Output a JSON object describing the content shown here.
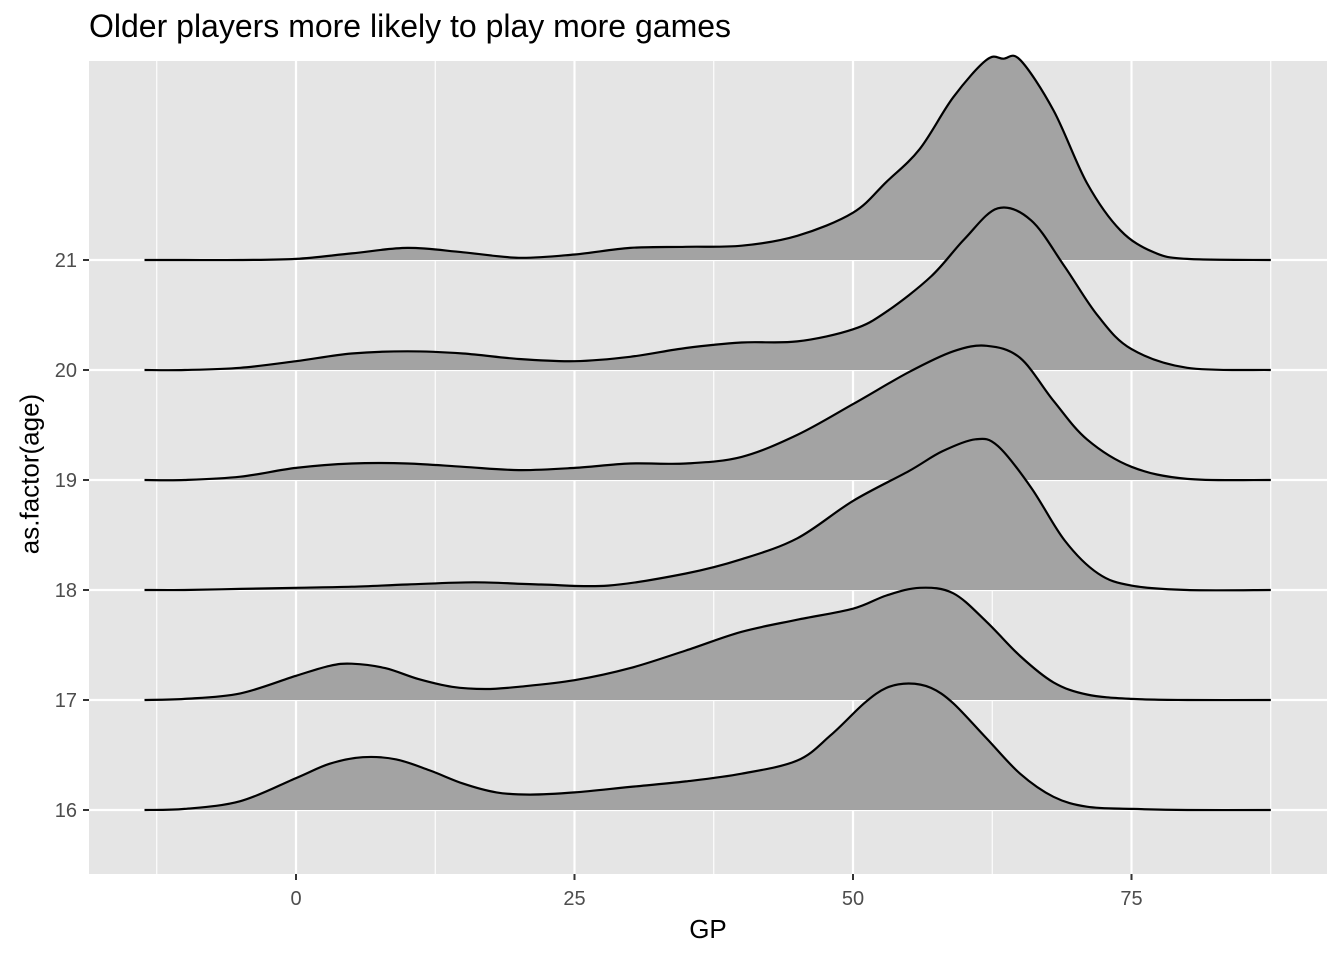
{
  "chart_data": {
    "type": "ridgeline",
    "title": "Older players more likely to play more games",
    "xlabel": "GP",
    "ylabel": "as.factor(age)",
    "x_ticks": [
      0,
      25,
      50,
      75
    ],
    "y_categories": [
      "16",
      "17",
      "18",
      "19",
      "20",
      "21"
    ],
    "xlim": [
      -15,
      88
    ],
    "grid": true,
    "legend": "none",
    "colors": {
      "panel": "#e5e5e5",
      "grid": "#ffffff",
      "fill": "#a3a3a3",
      "line": "#000000"
    },
    "series": [
      {
        "name": "16",
        "x": [
          -13.6,
          -10,
          -5,
          0,
          3,
          6,
          9,
          12,
          15,
          18,
          21,
          25,
          30,
          35,
          40,
          45,
          48,
          51,
          53,
          55,
          57,
          59,
          62,
          65,
          68,
          71,
          75,
          80,
          87.5
        ],
        "y": [
          0,
          0.01,
          0.08,
          0.29,
          0.42,
          0.48,
          0.46,
          0.36,
          0.24,
          0.16,
          0.14,
          0.16,
          0.21,
          0.26,
          0.33,
          0.45,
          0.68,
          0.97,
          1.11,
          1.15,
          1.11,
          0.97,
          0.65,
          0.33,
          0.12,
          0.03,
          0.01,
          0,
          0
        ]
      },
      {
        "name": "17",
        "x": [
          -13.6,
          -10,
          -5,
          0,
          3,
          5,
          8,
          11,
          14,
          17,
          20,
          25,
          30,
          35,
          40,
          45,
          50,
          53,
          56,
          59,
          62,
          65,
          68,
          71,
          75,
          80,
          87.5
        ],
        "y": [
          0,
          0.01,
          0.06,
          0.22,
          0.31,
          0.33,
          0.29,
          0.19,
          0.12,
          0.1,
          0.12,
          0.18,
          0.29,
          0.45,
          0.62,
          0.73,
          0.83,
          0.95,
          1.02,
          0.97,
          0.71,
          0.4,
          0.16,
          0.05,
          0.01,
          0,
          0
        ]
      },
      {
        "name": "18",
        "x": [
          -13.6,
          -10,
          -5,
          0,
          5,
          10,
          16,
          22,
          28,
          35,
          40,
          45,
          50,
          55,
          58,
          61,
          63,
          66,
          69,
          72,
          75,
          80,
          87.5
        ],
        "y": [
          0,
          0,
          0.01,
          0.02,
          0.03,
          0.05,
          0.07,
          0.05,
          0.04,
          0.15,
          0.28,
          0.47,
          0.81,
          1.08,
          1.26,
          1.37,
          1.31,
          0.93,
          0.45,
          0.15,
          0.04,
          0,
          0
        ]
      },
      {
        "name": "19",
        "x": [
          -13.6,
          -10,
          -5,
          0,
          5,
          10,
          15,
          20,
          25,
          30,
          35,
          40,
          45,
          50,
          55,
          59,
          62,
          65,
          68,
          71,
          75,
          80,
          87.5
        ],
        "y": [
          0,
          0,
          0.03,
          0.11,
          0.15,
          0.15,
          0.12,
          0.09,
          0.11,
          0.15,
          0.15,
          0.21,
          0.41,
          0.69,
          0.98,
          1.17,
          1.22,
          1.11,
          0.72,
          0.37,
          0.12,
          0.01,
          0
        ]
      },
      {
        "name": "20",
        "x": [
          -13.6,
          -10,
          -5,
          0,
          5,
          10,
          15,
          20,
          25,
          30,
          35,
          40,
          45,
          50,
          53,
          57,
          60,
          63,
          66,
          69,
          72,
          75,
          80,
          87.5
        ],
        "y": [
          0,
          0,
          0.02,
          0.08,
          0.15,
          0.17,
          0.15,
          0.1,
          0.08,
          0.12,
          0.2,
          0.25,
          0.26,
          0.37,
          0.53,
          0.85,
          1.19,
          1.47,
          1.36,
          0.94,
          0.49,
          0.19,
          0.02,
          0
        ]
      },
      {
        "name": "21",
        "x": [
          -13.6,
          -10,
          -5,
          0,
          5,
          10,
          15,
          20,
          25,
          30,
          35,
          40,
          45,
          50,
          53,
          56,
          59,
          62,
          63.5,
          65,
          68,
          71,
          74,
          77,
          80,
          87.5
        ],
        "y": [
          0,
          0,
          0,
          0.01,
          0.06,
          0.11,
          0.07,
          0.02,
          0.05,
          0.11,
          0.12,
          0.13,
          0.22,
          0.43,
          0.71,
          1.01,
          1.48,
          1.82,
          1.83,
          1.82,
          1.36,
          0.7,
          0.27,
          0.07,
          0.01,
          0
        ]
      }
    ]
  }
}
